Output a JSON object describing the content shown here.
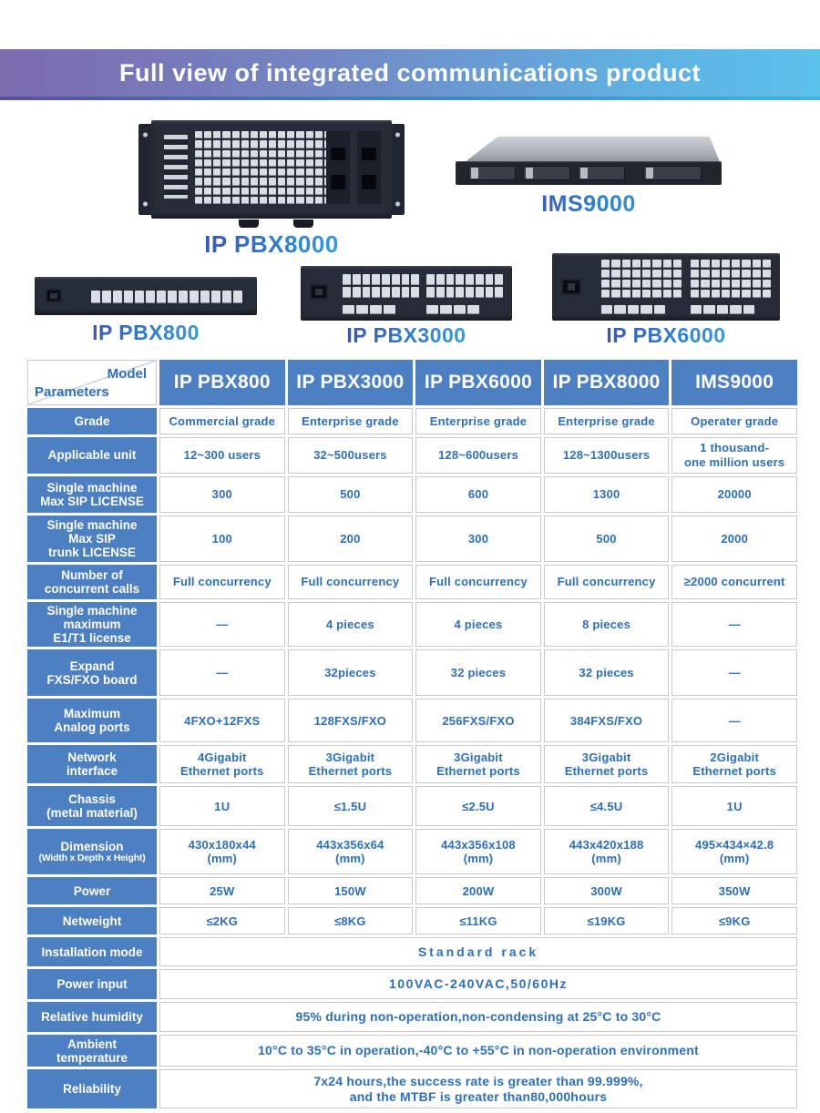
{
  "banner": {
    "title": "Full view of integrated communications product"
  },
  "products": {
    "pbx8000": {
      "label": "IP PBX8000"
    },
    "ims9000": {
      "label": "IMS9000"
    },
    "pbx800": {
      "label": "IP PBX800"
    },
    "pbx3000": {
      "label": "IP PBX3000"
    },
    "pbx6000": {
      "label": "IP PBX6000"
    }
  },
  "table": {
    "corner": {
      "top": "Model",
      "bottom": "Parameters"
    },
    "columns": [
      "IP PBX800",
      "IP PBX3000",
      "IP PBX6000",
      "IP PBX8000",
      "IMS9000"
    ],
    "rows": [
      {
        "header": "Grade",
        "cells": [
          "Commercial grade",
          "Enterprise grade",
          "Enterprise grade",
          "Enterprise grade",
          "Operater grade"
        ]
      },
      {
        "header": "Applicable unit",
        "cells": [
          "12~300 users",
          "32~500users",
          "128~600users",
          "128~1300users",
          "1 thousand-\none million users"
        ]
      },
      {
        "header": "Single machine\nMax SIP LICENSE",
        "cells": [
          "300",
          "500",
          "600",
          "1300",
          "20000"
        ]
      },
      {
        "header": "Single machine\nMax SIP\ntrunk LICENSE",
        "cells": [
          "100",
          "200",
          "300",
          "500",
          "2000"
        ]
      },
      {
        "header": "Number of\nconcurrent calls",
        "cells": [
          "Full concurrency",
          "Full concurrency",
          "Full concurrency",
          "Full concurrency",
          "≥2000 concurrent"
        ]
      },
      {
        "header": "Single machine\nmaximum\nE1/T1 license",
        "cells": [
          "—",
          "4 pieces",
          "4 pieces",
          "8 pieces",
          "—"
        ]
      },
      {
        "header": "Expand\nFXS/FXO  board",
        "cells": [
          "—",
          "32pieces",
          "32 pieces",
          "32 pieces",
          "—"
        ]
      },
      {
        "header": "Maximum\nAnalog ports",
        "cells": [
          "4FXO+12FXS",
          "128FXS/FXO",
          "256FXS/FXO",
          "384FXS/FXO",
          "—"
        ]
      },
      {
        "header": "Network\ninterface",
        "cells": [
          "4Gigabit\nEthernet ports",
          "3Gigabit\nEthernet ports",
          "3Gigabit\nEthernet ports",
          "3Gigabit\nEthernet ports",
          "2Gigabit\nEthernet ports"
        ]
      },
      {
        "header": "Chassis\n(metal material)",
        "cells": [
          "1U",
          "≤1.5U",
          "≤2.5U",
          "≤4.5U",
          "1U"
        ]
      },
      {
        "header": "Dimension\n(Width x Depth x Height)",
        "cells": [
          "430x180x44\n(mm)",
          "443x356x64\n(mm)",
          "443x356x108\n(mm)",
          "443x420x188\n(mm)",
          "495×434×42.8\n(mm)"
        ]
      },
      {
        "header": "Power",
        "cells": [
          "25W",
          "150W",
          "200W",
          "300W",
          "350W"
        ]
      },
      {
        "header": "Netweight",
        "cells": [
          "≤2KG",
          "≤8KG",
          "≤11KG",
          "≤19KG",
          "≤9KG"
        ]
      },
      {
        "header": "Installation mode",
        "span": "Standard rack"
      },
      {
        "header": "Power input",
        "span": "100VAC-240VAC,50/60Hz"
      },
      {
        "header": "Relative humidity",
        "span": "95% during non-operation,non-condensing at 25°C to 30°C"
      },
      {
        "header": "Ambient\ntemperature",
        "span": "10°C to 35°C in operation,-40°C to +55°C in non-operation environment"
      },
      {
        "header": "Reliability",
        "span": "7x24 hours,the success rate is greater than 99.999%,\nand the MTBF is greater than80,000hours"
      }
    ]
  },
  "colors": {
    "header_blue": "#4d80c3",
    "cell_text_blue": "#2d6fbd",
    "banner_gradient_left": "#7c6bae",
    "banner_gradient_right": "#5bc2ec",
    "label_gradient_start": "#45399b",
    "label_gradient_end": "#3cb9ef"
  }
}
